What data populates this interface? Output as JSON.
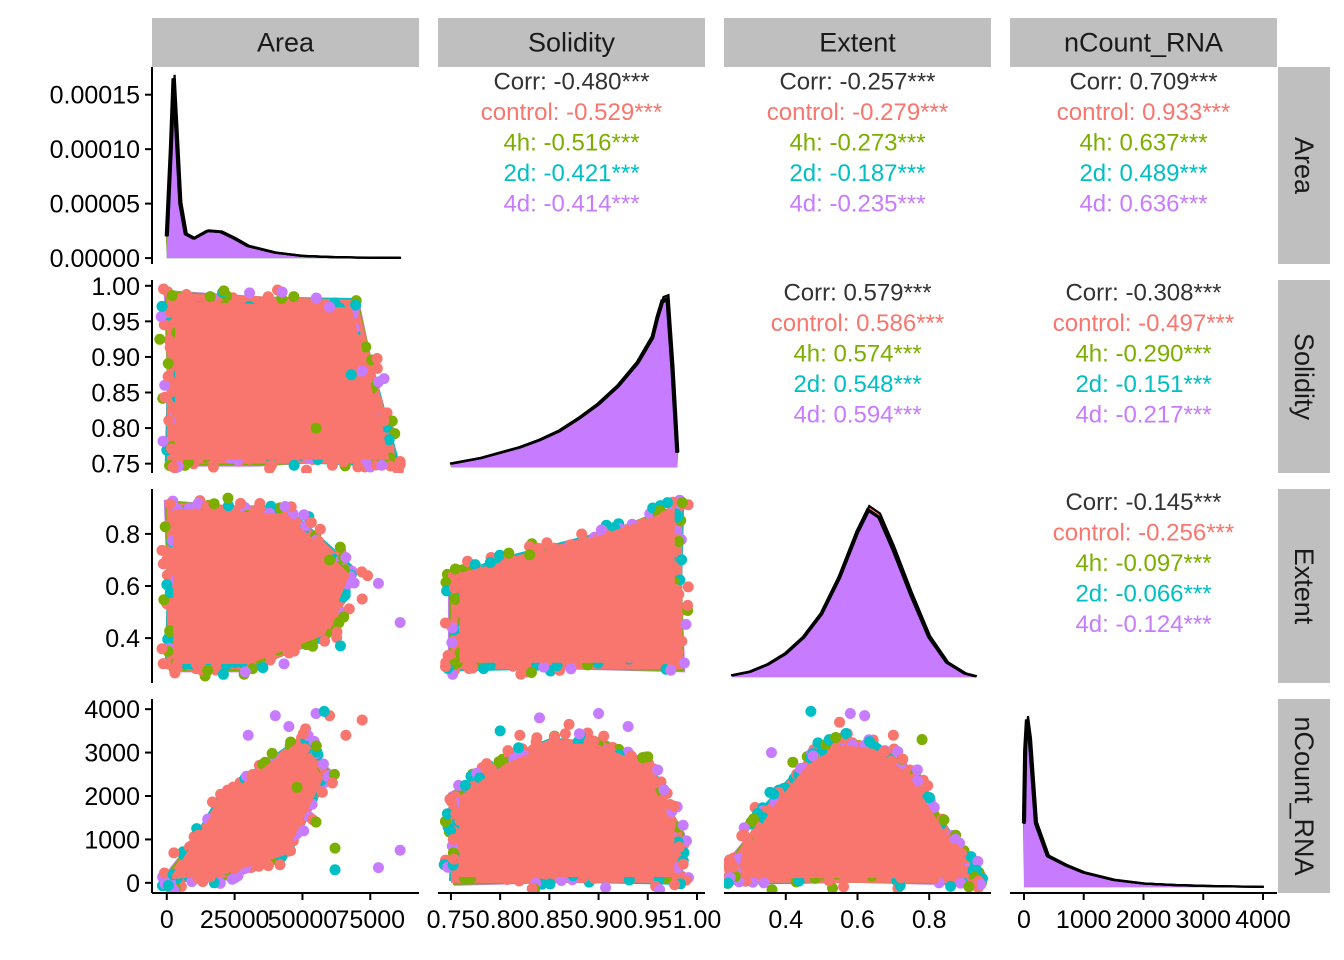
{
  "colors": {
    "control": "#F8766D",
    "4h": "#7CAE00",
    "2d": "#00BFC4",
    "4d": "#C77CFF",
    "overall": "#333333",
    "strip": "#bfbfbf"
  },
  "chart_data": {
    "type": "scatter",
    "title": "",
    "groups": [
      "control",
      "4h",
      "2d",
      "4d"
    ],
    "variables": [
      "Area",
      "Solidity",
      "Extent",
      "nCount_RNA"
    ],
    "axes": {
      "Area": {
        "x_range": [
          -2500,
          90000
        ],
        "x_ticks": [
          0,
          25000,
          50000,
          75000
        ],
        "x_tick_labels": [
          "0",
          "25000",
          "50000",
          "75000"
        ],
        "density_range": [
          0,
          0.00017
        ],
        "density_ticks": [
          0,
          5e-05,
          0.0001,
          0.00015
        ],
        "density_tick_labels": [
          "0.00000",
          "0.00005",
          "0.00010",
          "0.00015"
        ]
      },
      "Solidity": {
        "range": [
          0.745,
          1.0
        ],
        "ticks": [
          0.75,
          0.8,
          0.85,
          0.9,
          0.95,
          1.0
        ],
        "tick_labels": [
          "0.75",
          "0.80",
          "0.85",
          "0.90",
          "0.95",
          "1.00"
        ]
      },
      "Extent": {
        "range": [
          0.25,
          0.95
        ],
        "ticks": [
          0.4,
          0.6,
          0.8
        ],
        "tick_labels": [
          "0.4",
          "0.6",
          "0.8"
        ]
      },
      "nCount_RNA": {
        "range": [
          -100,
          4100
        ],
        "ticks": [
          0,
          1000,
          2000,
          3000,
          4000
        ],
        "tick_labels": [
          "0",
          "1000",
          "2000",
          "3000",
          "4000"
        ]
      }
    },
    "correlations": [
      {
        "row": "Area",
        "col": "Solidity",
        "lines": [
          {
            "label": "Corr: -0.480***",
            "group": "overall"
          },
          {
            "label": "control: -0.529***",
            "group": "control"
          },
          {
            "label": "4h: -0.516***",
            "group": "4h"
          },
          {
            "label": "2d: -0.421***",
            "group": "2d"
          },
          {
            "label": "4d: -0.414***",
            "group": "4d"
          }
        ]
      },
      {
        "row": "Area",
        "col": "Extent",
        "lines": [
          {
            "label": "Corr: -0.257***",
            "group": "overall"
          },
          {
            "label": "control: -0.279***",
            "group": "control"
          },
          {
            "label": "4h: -0.273***",
            "group": "4h"
          },
          {
            "label": "2d: -0.187***",
            "group": "2d"
          },
          {
            "label": "4d: -0.235***",
            "group": "4d"
          }
        ]
      },
      {
        "row": "Area",
        "col": "nCount_RNA",
        "lines": [
          {
            "label": "Corr: 0.709***",
            "group": "overall"
          },
          {
            "label": "control: 0.933***",
            "group": "control"
          },
          {
            "label": "4h: 0.637***",
            "group": "4h"
          },
          {
            "label": "2d: 0.489***",
            "group": "2d"
          },
          {
            "label": "4d: 0.636***",
            "group": "4d"
          }
        ]
      },
      {
        "row": "Solidity",
        "col": "Extent",
        "lines": [
          {
            "label": "Corr: 0.579***",
            "group": "overall"
          },
          {
            "label": "control: 0.586***",
            "group": "control"
          },
          {
            "label": "4h: 0.574***",
            "group": "4h"
          },
          {
            "label": "2d: 0.548***",
            "group": "2d"
          },
          {
            "label": "4d: 0.594***",
            "group": "4d"
          }
        ]
      },
      {
        "row": "Solidity",
        "col": "nCount_RNA",
        "lines": [
          {
            "label": "Corr: -0.308***",
            "group": "overall"
          },
          {
            "label": "control: -0.497***",
            "group": "control"
          },
          {
            "label": "4h: -0.290***",
            "group": "4h"
          },
          {
            "label": "2d: -0.151***",
            "group": "2d"
          },
          {
            "label": "4d: -0.217***",
            "group": "4d"
          }
        ]
      },
      {
        "row": "Extent",
        "col": "nCount_RNA",
        "lines": [
          {
            "label": "Corr: -0.145***",
            "group": "overall"
          },
          {
            "label": "control: -0.256***",
            "group": "control"
          },
          {
            "label": "4h: -0.097***",
            "group": "4h"
          },
          {
            "label": "2d: -0.066***",
            "group": "2d"
          },
          {
            "label": "4d: -0.124***",
            "group": "4d"
          }
        ]
      }
    ],
    "densities": {
      "Area": {
        "x": [
          0,
          1500,
          2500,
          3500,
          5000,
          7000,
          10000,
          15000,
          20000,
          25000,
          30000,
          40000,
          50000,
          60000,
          70000,
          86000
        ],
        "y": [
          2e-05,
          0.0001,
          0.000165,
          0.00012,
          5e-05,
          2.2e-05,
          1.8e-05,
          2.5e-05,
          2.4e-05,
          1.8e-05,
          1.1e-05,
          5e-06,
          2e-06,
          1e-06,
          5e-07,
          2e-07
        ]
      },
      "Solidity": {
        "x": [
          0.75,
          0.78,
          0.8,
          0.82,
          0.84,
          0.86,
          0.88,
          0.9,
          0.92,
          0.94,
          0.955,
          0.96,
          0.965,
          0.97,
          0.975,
          0.98
        ],
        "rel": [
          0.02,
          0.05,
          0.08,
          0.11,
          0.15,
          0.2,
          0.27,
          0.35,
          0.45,
          0.58,
          0.72,
          0.83,
          0.92,
          0.93,
          0.55,
          0.08
        ]
      },
      "Extent": {
        "x": [
          0.25,
          0.3,
          0.35,
          0.4,
          0.45,
          0.5,
          0.55,
          0.6,
          0.63,
          0.66,
          0.7,
          0.75,
          0.8,
          0.85,
          0.9,
          0.93
        ],
        "rel": [
          0.01,
          0.03,
          0.07,
          0.13,
          0.22,
          0.35,
          0.55,
          0.8,
          0.92,
          0.88,
          0.7,
          0.45,
          0.22,
          0.08,
          0.02,
          0.005
        ]
      },
      "nCount_RNA": {
        "x": [
          0,
          20,
          50,
          100,
          200,
          400,
          700,
          1000,
          1500,
          2000,
          2500,
          3000,
          3500,
          4000
        ],
        "rel": [
          0.35,
          0.75,
          0.92,
          0.8,
          0.35,
          0.17,
          0.12,
          0.08,
          0.04,
          0.02,
          0.012,
          0.007,
          0.004,
          0.002
        ]
      }
    },
    "scatter_clouds": [
      {
        "row": "Solidity",
        "col": "Area",
        "boundary_x": [
          0,
          70000,
          85000,
          70000,
          35000,
          0
        ],
        "boundary_y": [
          0.99,
          0.98,
          0.75,
          0.75,
          0.75,
          0.75
        ],
        "outliers": [
          {
            "g": "4d",
            "x": 60000,
            "y": 0.97
          },
          {
            "g": "4d",
            "x": 72000,
            "y": 0.88
          },
          {
            "g": "4d",
            "x": 78000,
            "y": 0.865
          },
          {
            "g": "control",
            "x": 80000,
            "y": 0.81
          },
          {
            "g": "control",
            "x": 86000,
            "y": 0.753
          },
          {
            "g": "control",
            "x": 65000,
            "y": 0.77
          },
          {
            "g": "control",
            "x": 72000,
            "y": 0.84
          },
          {
            "g": "4h",
            "x": 55000,
            "y": 0.8
          },
          {
            "g": "2d",
            "x": 68000,
            "y": 0.875
          }
        ]
      },
      {
        "row": "Extent",
        "col": "Area",
        "boundary_x": [
          0,
          45000,
          70000,
          60000,
          30000,
          0
        ],
        "boundary_y": [
          0.92,
          0.9,
          0.65,
          0.4,
          0.28,
          0.28
        ],
        "outliers": [
          {
            "g": "4d",
            "x": 86000,
            "y": 0.46
          },
          {
            "g": "4d",
            "x": 78000,
            "y": 0.61
          },
          {
            "g": "control",
            "x": 72000,
            "y": 0.55
          },
          {
            "g": "control",
            "x": 74000,
            "y": 0.64
          },
          {
            "g": "2d",
            "x": 64000,
            "y": 0.37
          },
          {
            "g": "4h",
            "x": 60000,
            "y": 0.7
          }
        ]
      },
      {
        "row": "Extent",
        "col": "Solidity",
        "boundary_x": [
          0.75,
          0.8,
          0.9,
          0.96,
          0.985,
          0.985,
          0.75
        ],
        "boundary_y": [
          0.65,
          0.7,
          0.8,
          0.88,
          0.92,
          0.28,
          0.28
        ],
        "outliers": [
          {
            "g": "4h",
            "x": 0.985,
            "y": 0.92
          },
          {
            "g": "2d",
            "x": 0.97,
            "y": 0.92
          },
          {
            "g": "2d",
            "x": 0.79,
            "y": 0.69
          },
          {
            "g": "4h",
            "x": 0.83,
            "y": 0.72
          }
        ]
      },
      {
        "row": "nCount_RNA",
        "col": "Area",
        "boundary_x": [
          0,
          20000,
          50000,
          60000,
          45000,
          20000,
          0
        ],
        "boundary_y": [
          100,
          2000,
          3400,
          2500,
          600,
          100,
          0
        ],
        "outliers": [
          {
            "g": "4d",
            "x": 40000,
            "y": 3850
          },
          {
            "g": "4d",
            "x": 55000,
            "y": 3900
          },
          {
            "g": "4d",
            "x": 30000,
            "y": 3400
          },
          {
            "g": "4d",
            "x": 45000,
            "y": 3600
          },
          {
            "g": "control",
            "x": 72000,
            "y": 3750
          },
          {
            "g": "control",
            "x": 66000,
            "y": 3400
          },
          {
            "g": "control",
            "x": 60000,
            "y": 3850
          },
          {
            "g": "2d",
            "x": 62000,
            "y": 300
          },
          {
            "g": "2d",
            "x": 58000,
            "y": 3950
          },
          {
            "g": "4h",
            "x": 55000,
            "y": 1400
          },
          {
            "g": "4h",
            "x": 62000,
            "y": 800
          },
          {
            "g": "4h",
            "x": 48000,
            "y": 2200
          },
          {
            "g": "4d",
            "x": 86000,
            "y": 750
          },
          {
            "g": "4d",
            "x": 78000,
            "y": 350
          }
        ]
      },
      {
        "row": "nCount_RNA",
        "col": "Solidity",
        "boundary_x": [
          0.75,
          0.8,
          0.85,
          0.9,
          0.95,
          0.985,
          0.985,
          0.75
        ],
        "boundary_y": [
          2000,
          2800,
          3300,
          3300,
          2800,
          1200,
          0,
          0
        ],
        "outliers": [
          {
            "g": "4d",
            "x": 0.84,
            "y": 3800
          },
          {
            "g": "4d",
            "x": 0.9,
            "y": 3900
          },
          {
            "g": "4d",
            "x": 0.93,
            "y": 3600
          },
          {
            "g": "control",
            "x": 0.87,
            "y": 3650
          },
          {
            "g": "control",
            "x": 0.82,
            "y": 3400
          },
          {
            "g": "2d",
            "x": 0.8,
            "y": 3500
          },
          {
            "g": "4d",
            "x": 0.96,
            "y": 2600
          },
          {
            "g": "4h",
            "x": 0.95,
            "y": 2900
          }
        ]
      },
      {
        "row": "nCount_RNA",
        "col": "Extent",
        "boundary_x": [
          0.25,
          0.35,
          0.45,
          0.55,
          0.65,
          0.75,
          0.85,
          0.93,
          0.93,
          0.25
        ],
        "boundary_y": [
          500,
          1800,
          2800,
          3300,
          3200,
          2600,
          1300,
          200,
          0,
          0
        ],
        "outliers": [
          {
            "g": "2d",
            "x": 0.47,
            "y": 3950
          },
          {
            "g": "4d",
            "x": 0.58,
            "y": 3900
          },
          {
            "g": "4d",
            "x": 0.62,
            "y": 3850
          },
          {
            "g": "control",
            "x": 0.55,
            "y": 3700
          },
          {
            "g": "control",
            "x": 0.7,
            "y": 3400
          },
          {
            "g": "4h",
            "x": 0.78,
            "y": 3300
          },
          {
            "g": "4d",
            "x": 0.36,
            "y": 3000
          }
        ]
      }
    ]
  }
}
